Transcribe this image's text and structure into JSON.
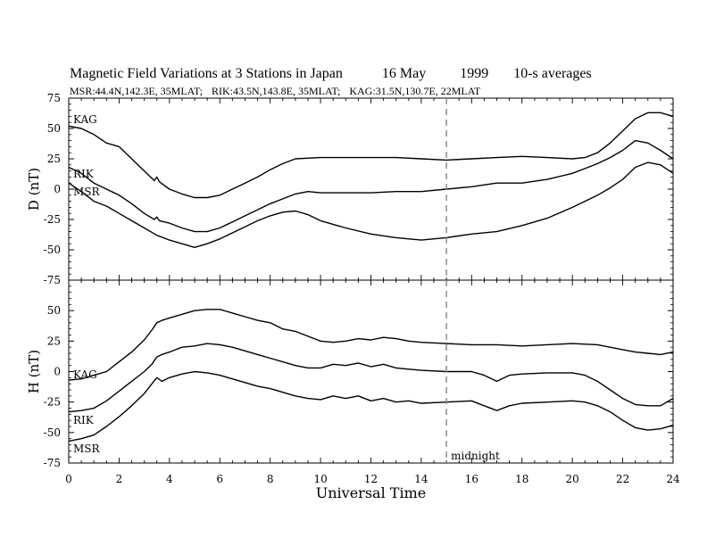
{
  "header": {
    "title_parts": [
      "Magnetic Field Variations at 3 Stations in Japan",
      "16 May",
      "1999",
      "10-s averages"
    ],
    "subtitle_parts": [
      "MSR:44.4N,142.3E, 35MLAT;",
      "RIK:43.5N,143.8E, 35MLAT;",
      "KAG:31.5N,130.7E, 22MLAT"
    ]
  },
  "chart_data": [
    {
      "type": "line",
      "ylabel": "D (nT)",
      "xlim": [
        0,
        24
      ],
      "ylim": [
        -75,
        75
      ],
      "yticks": [
        75,
        50,
        25,
        0,
        -25,
        -50,
        -75
      ],
      "series": [
        {
          "name": "KAG",
          "x": [
            0,
            0.5,
            1,
            1.5,
            2,
            2.5,
            3,
            3.4,
            3.5,
            3.6,
            4,
            4.5,
            5,
            5.5,
            6,
            6.5,
            7,
            7.5,
            8,
            8.5,
            9,
            10,
            11,
            12,
            13,
            14,
            15,
            16,
            17,
            18,
            19,
            20,
            20.5,
            21,
            21.5,
            22,
            22.5,
            23,
            23.5,
            24
          ],
          "y": [
            52,
            50,
            45,
            38,
            35,
            25,
            15,
            7,
            10,
            6,
            0,
            -4,
            -7,
            -7,
            -5,
            0,
            5,
            10,
            16,
            21,
            25,
            26,
            26,
            26,
            26,
            25,
            24,
            25,
            26,
            27,
            26,
            25,
            26,
            30,
            38,
            48,
            58,
            63,
            63,
            60
          ]
        },
        {
          "name": "RIK",
          "x": [
            0,
            0.5,
            1,
            1.5,
            2,
            2.5,
            3,
            3.4,
            3.5,
            3.6,
            4,
            4.5,
            5,
            5.5,
            6,
            6.5,
            7,
            7.5,
            8,
            8.5,
            9,
            9.5,
            10,
            11,
            12,
            13,
            14,
            15,
            16,
            17,
            18,
            19,
            20,
            20.5,
            21,
            21.5,
            22,
            22.5,
            23,
            23.5,
            24
          ],
          "y": [
            18,
            13,
            5,
            0,
            -5,
            -12,
            -20,
            -25,
            -23,
            -26,
            -28,
            -32,
            -35,
            -35,
            -32,
            -27,
            -22,
            -17,
            -12,
            -8,
            -4,
            -2,
            -3,
            -3,
            -3,
            -2,
            -2,
            0,
            2,
            5,
            5,
            8,
            13,
            17,
            21,
            26,
            32,
            40,
            38,
            32,
            25
          ]
        },
        {
          "name": "MSR",
          "x": [
            0,
            0.5,
            1,
            1.5,
            2,
            2.5,
            3,
            3.5,
            4,
            4.5,
            5,
            5.5,
            6,
            6.5,
            7,
            7.5,
            8,
            8.5,
            9,
            9.5,
            10,
            11,
            12,
            13,
            14,
            15,
            16,
            17,
            18,
            19,
            20,
            20.5,
            21,
            21.5,
            22,
            22.5,
            23,
            23.5,
            24
          ],
          "y": [
            5,
            -2,
            -10,
            -14,
            -20,
            -26,
            -32,
            -38,
            -42,
            -45,
            -48,
            -45,
            -41,
            -36,
            -31,
            -26,
            -22,
            -19,
            -18,
            -21,
            -26,
            -32,
            -37,
            -40,
            -42,
            -40,
            -37,
            -35,
            -30,
            -24,
            -15,
            -10,
            -5,
            1,
            8,
            18,
            22,
            20,
            13
          ]
        }
      ],
      "annotations": [
        {
          "text": "KAG"
        },
        {
          "text": "RIK"
        },
        {
          "text": "MSR"
        }
      ]
    },
    {
      "type": "line",
      "ylabel": "H (nT)",
      "xlabel": "Universal Time",
      "xlim": [
        0,
        24
      ],
      "ylim": [
        -75,
        75
      ],
      "xticks": [
        0,
        2,
        4,
        6,
        8,
        10,
        12,
        14,
        16,
        18,
        20,
        22,
        24
      ],
      "yticks": [
        50,
        25,
        0,
        -25,
        -50,
        -75
      ],
      "vline": {
        "x": 15,
        "label": "midnight"
      },
      "series": [
        {
          "name": "KAG",
          "x": [
            0,
            0.5,
            1,
            1.5,
            2,
            2.5,
            3,
            3.3,
            3.5,
            3.7,
            4,
            4.5,
            5,
            5.5,
            6,
            6.5,
            7,
            7.5,
            8,
            8.5,
            9,
            9.5,
            10,
            10.5,
            11,
            11.5,
            12,
            12.5,
            13,
            13.5,
            14,
            15,
            16,
            17,
            18,
            19,
            20,
            21,
            21.5,
            22,
            22.5,
            23,
            23.5,
            24
          ],
          "y": [
            -7,
            -6,
            -3,
            0,
            8,
            16,
            26,
            34,
            40,
            42,
            44,
            47,
            50,
            51,
            51,
            48,
            45,
            42,
            40,
            35,
            33,
            29,
            25,
            24,
            25,
            27,
            26,
            28,
            27,
            25,
            24,
            23,
            22,
            22,
            21,
            22,
            23,
            22,
            20,
            18,
            16,
            15,
            14,
            16
          ]
        },
        {
          "name": "RIK",
          "x": [
            0,
            0.5,
            1,
            1.5,
            2,
            2.5,
            3,
            3.3,
            3.5,
            3.7,
            4,
            4.5,
            5,
            5.5,
            6,
            6.5,
            7,
            7.5,
            8,
            8.5,
            9,
            9.5,
            10,
            10.5,
            11,
            11.5,
            12,
            12.5,
            13,
            13.5,
            14,
            15,
            16,
            16.5,
            17,
            17.5,
            18,
            19,
            20,
            20.5,
            21,
            21.5,
            22,
            22.5,
            23,
            23.5,
            24
          ],
          "y": [
            -33,
            -32,
            -30,
            -24,
            -16,
            -8,
            0,
            6,
            12,
            14,
            16,
            20,
            21,
            23,
            22,
            20,
            17,
            14,
            11,
            8,
            5,
            3,
            3,
            6,
            5,
            7,
            4,
            6,
            3,
            2,
            1,
            0,
            0,
            -3,
            -8,
            -3,
            -2,
            -1,
            -1,
            -3,
            -8,
            -15,
            -22,
            -27,
            -28,
            -28,
            -22
          ]
        },
        {
          "name": "MSR",
          "x": [
            0,
            0.5,
            1,
            1.5,
            2,
            2.5,
            3,
            3.3,
            3.5,
            3.7,
            4,
            4.5,
            5,
            5.5,
            6,
            6.5,
            7,
            7.5,
            8,
            8.5,
            9,
            9.5,
            10,
            10.5,
            11,
            11.5,
            12,
            12.5,
            13,
            13.5,
            14,
            15,
            16,
            16.5,
            17,
            17.5,
            18,
            19,
            20,
            20.5,
            21,
            21.5,
            22,
            22.5,
            23,
            23.5,
            24
          ],
          "y": [
            -57,
            -55,
            -52,
            -45,
            -37,
            -28,
            -18,
            -10,
            -5,
            -8,
            -5,
            -2,
            0,
            -1,
            -3,
            -6,
            -9,
            -12,
            -14,
            -17,
            -20,
            -22,
            -23,
            -20,
            -22,
            -20,
            -24,
            -22,
            -25,
            -24,
            -26,
            -25,
            -24,
            -28,
            -32,
            -28,
            -26,
            -25,
            -24,
            -25,
            -28,
            -33,
            -40,
            -46,
            -48,
            -47,
            -44
          ]
        }
      ],
      "annotations": [
        {
          "text": "KAG"
        },
        {
          "text": "RIK"
        },
        {
          "text": "MSR"
        }
      ]
    }
  ]
}
